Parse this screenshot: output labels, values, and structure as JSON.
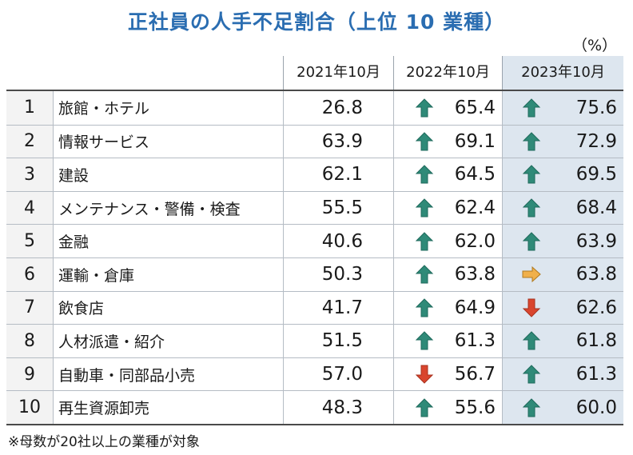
{
  "title": "正社員の人手不足割合（上位 10 業種）",
  "unit": "（%）",
  "columns": [
    "2021年10月",
    "2022年10月",
    "2023年10月"
  ],
  "colors": {
    "up": "#2f8a78",
    "down": "#d9452e",
    "flat": "#f0b04a",
    "highlight": "#dde6ef",
    "title": "#2a6db1"
  },
  "rows": [
    {
      "rank": "1",
      "name": "旅館・ホテル",
      "v2021": "26.8",
      "v2022": "65.4",
      "a2022": "up",
      "v2023": "75.6",
      "a2023": "up"
    },
    {
      "rank": "2",
      "name": "情報サービス",
      "v2021": "63.9",
      "v2022": "69.1",
      "a2022": "up",
      "v2023": "72.9",
      "a2023": "up"
    },
    {
      "rank": "3",
      "name": "建設",
      "v2021": "62.1",
      "v2022": "64.5",
      "a2022": "up",
      "v2023": "69.5",
      "a2023": "up"
    },
    {
      "rank": "4",
      "name": "メンテナンス・警備・検査",
      "v2021": "55.5",
      "v2022": "62.4",
      "a2022": "up",
      "v2023": "68.4",
      "a2023": "up"
    },
    {
      "rank": "5",
      "name": "金融",
      "v2021": "40.6",
      "v2022": "62.0",
      "a2022": "up",
      "v2023": "63.9",
      "a2023": "up"
    },
    {
      "rank": "6",
      "name": "運輸・倉庫",
      "v2021": "50.3",
      "v2022": "63.8",
      "a2022": "up",
      "v2023": "63.8",
      "a2023": "flat"
    },
    {
      "rank": "7",
      "name": "飲食店",
      "v2021": "41.7",
      "v2022": "64.9",
      "a2022": "up",
      "v2023": "62.6",
      "a2023": "down"
    },
    {
      "rank": "8",
      "name": "人材派遣・紹介",
      "v2021": "51.5",
      "v2022": "61.3",
      "a2022": "up",
      "v2023": "61.8",
      "a2023": "up"
    },
    {
      "rank": "9",
      "name": "自動車・同部品小売",
      "v2021": "57.0",
      "v2022": "56.7",
      "a2022": "down",
      "v2023": "61.3",
      "a2023": "up"
    },
    {
      "rank": "10",
      "name": "再生資源卸売",
      "v2021": "48.3",
      "v2022": "55.6",
      "a2022": "up",
      "v2023": "60.0",
      "a2023": "up"
    }
  ],
  "note": "※母数が20社以上の業種が対象"
}
